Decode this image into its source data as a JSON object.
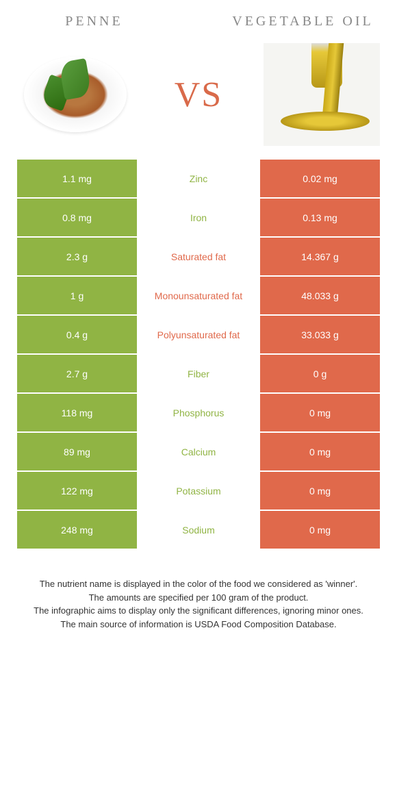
{
  "header": {
    "left_title": "PENNE",
    "right_title": "VEGETABLE OIL",
    "vs_text": "VS"
  },
  "colors": {
    "green": "#90b444",
    "orange": "#e0694b",
    "vs": "#d96a4a",
    "title": "#888888",
    "footer_text": "#333333"
  },
  "rows": [
    {
      "left": "1.1 mg",
      "label": "Zinc",
      "right": "0.02 mg",
      "winner": "left"
    },
    {
      "left": "0.8 mg",
      "label": "Iron",
      "right": "0.13 mg",
      "winner": "left"
    },
    {
      "left": "2.3 g",
      "label": "Saturated fat",
      "right": "14.367 g",
      "winner": "right"
    },
    {
      "left": "1 g",
      "label": "Monounsaturated fat",
      "right": "48.033 g",
      "winner": "right"
    },
    {
      "left": "0.4 g",
      "label": "Polyunsaturated fat",
      "right": "33.033 g",
      "winner": "right"
    },
    {
      "left": "2.7 g",
      "label": "Fiber",
      "right": "0 g",
      "winner": "left"
    },
    {
      "left": "118 mg",
      "label": "Phosphorus",
      "right": "0 mg",
      "winner": "left"
    },
    {
      "left": "89 mg",
      "label": "Calcium",
      "right": "0 mg",
      "winner": "left"
    },
    {
      "left": "122 mg",
      "label": "Potassium",
      "right": "0 mg",
      "winner": "left"
    },
    {
      "left": "248 mg",
      "label": "Sodium",
      "right": "0 mg",
      "winner": "left"
    }
  ],
  "footer": {
    "line1": "The nutrient name is displayed in the color of the food we considered as 'winner'.",
    "line2": "The amounts are specified per 100 gram of the product.",
    "line3": "The infographic aims to display only the significant differences, ignoring minor ones.",
    "line4": "The main source of information is USDA Food Composition Database."
  }
}
